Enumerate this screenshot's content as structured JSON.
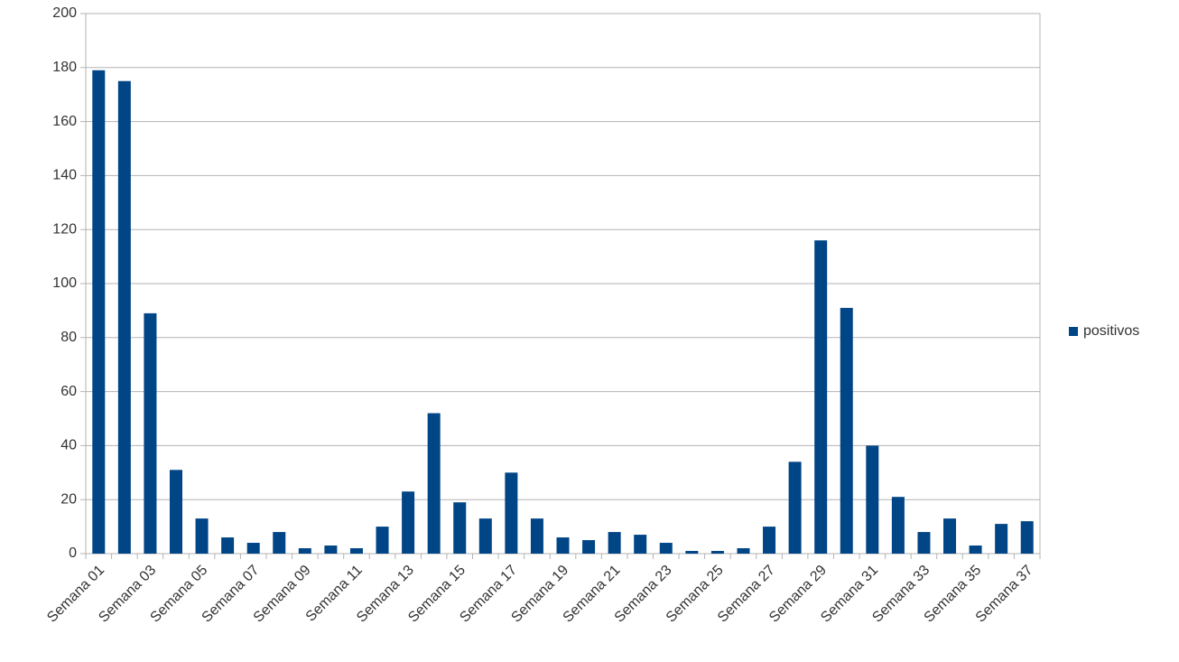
{
  "chart_data": {
    "type": "bar",
    "categories": [
      "Semana 01",
      null,
      "Semana 03",
      null,
      "Semana 05",
      null,
      "Semana 07",
      null,
      "Semana 09",
      null,
      "Semana 11",
      null,
      "Semana 13",
      null,
      "Semana 15",
      null,
      "Semana 17",
      null,
      "Semana 19",
      null,
      "Semana 21",
      null,
      "Semana 23",
      null,
      "Semana 25",
      null,
      "Semana 27",
      null,
      "Semana 29",
      null,
      "Semana 31",
      null,
      "Semana 33",
      null,
      "Semana 35",
      null,
      "Semana 37"
    ],
    "series": [
      {
        "name": "positivos",
        "color": "#004586",
        "values": [
          179,
          175,
          89,
          31,
          13,
          6,
          4,
          8,
          2,
          3,
          2,
          10,
          23,
          52,
          19,
          13,
          30,
          13,
          6,
          5,
          8,
          7,
          4,
          1,
          1,
          2,
          10,
          34,
          116,
          91,
          40,
          21,
          8,
          13,
          3,
          11,
          12
        ]
      }
    ],
    "ylim": [
      0,
      200
    ],
    "yticks": [
      0,
      20,
      40,
      60,
      80,
      100,
      120,
      140,
      160,
      180,
      200
    ],
    "grid": true,
    "legend": "right"
  }
}
